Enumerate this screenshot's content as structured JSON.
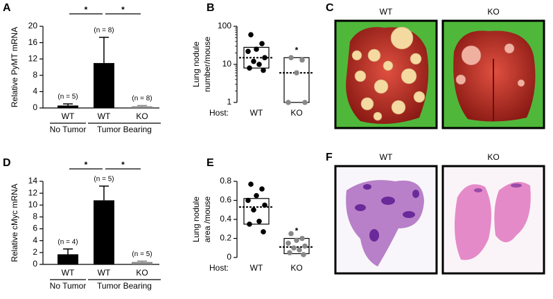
{
  "chart_data": [
    {
      "type": "bar",
      "panel": "A",
      "ylabel": "Relative PyMT mRNA",
      "categories": [
        "WT",
        "WT",
        "KO"
      ],
      "values": [
        0.6,
        11,
        0.4
      ],
      "errors": [
        0.4,
        6.3,
        0.2
      ],
      "annotations": [
        "(n = 5)",
        "(n = 8)",
        "(n = 8)"
      ],
      "colors": [
        "#000000",
        "#000000",
        "#888888"
      ],
      "significance_labels": [
        "*",
        "*"
      ],
      "groups": [
        "No Tumor",
        "Tumor Bearing"
      ],
      "ylim": [
        0,
        20
      ],
      "yticks": [
        0,
        4,
        8,
        12,
        16,
        20
      ]
    },
    {
      "type": "box",
      "panel": "B",
      "ylabel": [
        "Lung nodule",
        "number/mouse"
      ],
      "x_prefix": "Host:",
      "log_scale": true,
      "series": [
        {
          "name": "WT",
          "color": "#000000",
          "points": [
            60,
            35,
            25,
            22,
            15,
            12,
            10,
            8,
            7
          ],
          "q1": 8,
          "median": 15,
          "q3": 28,
          "significance_label": null
        },
        {
          "name": "KO",
          "color": "#888888",
          "points": [
            15,
            13,
            6,
            1,
            1
          ],
          "q1": 1,
          "median": 6,
          "q3": 15,
          "significance_label": "*"
        }
      ],
      "ylim": [
        1,
        100
      ],
      "yticks": [
        1,
        10,
        100
      ]
    },
    {
      "type": "bar",
      "panel": "D",
      "ylabel": "Relative cMyc mRNA",
      "categories": [
        "WT",
        "WT",
        "KO"
      ],
      "values": [
        1.7,
        10.8,
        0.4
      ],
      "errors": [
        0.9,
        2.4,
        0.15
      ],
      "annotations": [
        "(n = 4)",
        "(n = 5)",
        "(n = 5)"
      ],
      "colors": [
        "#000000",
        "#000000",
        "#888888"
      ],
      "significance_labels": [
        "*",
        "*"
      ],
      "groups": [
        "No Tumor",
        "Tumor Bearing"
      ],
      "ylim": [
        0,
        14
      ],
      "yticks": [
        0,
        2,
        4,
        6,
        8,
        10,
        12,
        14
      ]
    },
    {
      "type": "box",
      "panel": "E",
      "ylabel": [
        "Lung nodule",
        "area /mouse"
      ],
      "x_prefix": "Host:",
      "log_scale": false,
      "series": [
        {
          "name": "WT",
          "color": "#000000",
          "points": [
            0.77,
            0.72,
            0.65,
            0.6,
            0.55,
            0.5,
            0.38,
            0.35,
            0.27
          ],
          "q1": 0.35,
          "median": 0.53,
          "q3": 0.62,
          "significance_label": null
        },
        {
          "name": "KO",
          "color": "#888888",
          "points": [
            0.25,
            0.2,
            0.18,
            0.15,
            0.12,
            0.1,
            0.08,
            0.05,
            0.03
          ],
          "q1": 0.04,
          "median": 0.11,
          "q3": 0.2,
          "significance_label": "*"
        }
      ],
      "ylim": [
        0,
        0.8
      ],
      "yticks": [
        0,
        0.2,
        0.4,
        0.6,
        0.8
      ]
    }
  ],
  "images": [
    {
      "panel": "C",
      "labels": [
        "WT",
        "KO"
      ]
    },
    {
      "panel": "F",
      "labels": [
        "WT",
        "KO"
      ]
    }
  ]
}
